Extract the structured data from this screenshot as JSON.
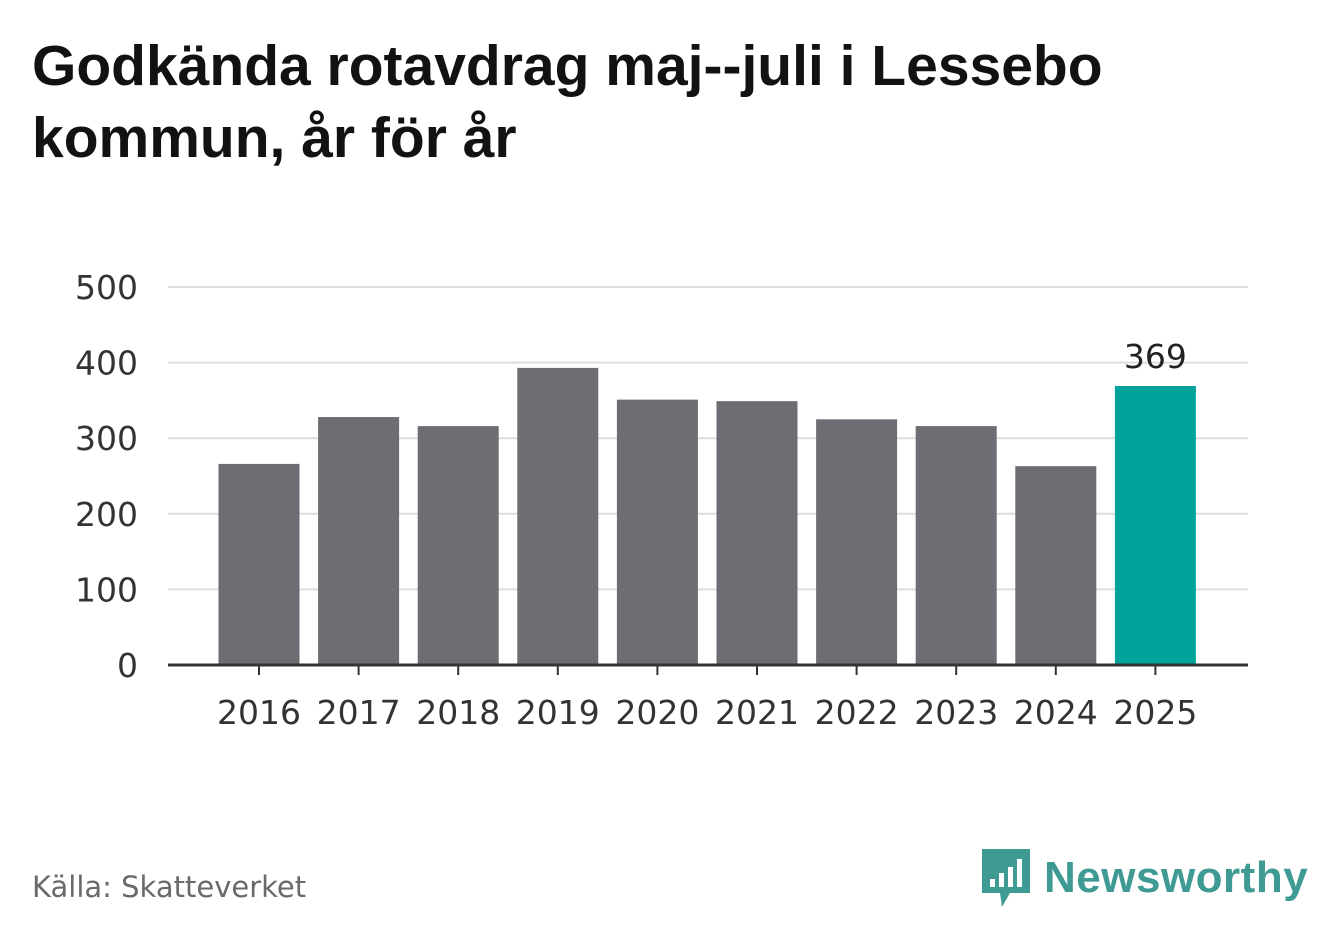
{
  "title": "Godkända rotavdrag maj--juli i Lessebo kommun, år för år",
  "source": "Källa: Skatteverket",
  "brand": {
    "name": "Newsworthy",
    "icon": "newsworthy-logo-icon",
    "color": "#3e9a93"
  },
  "colors": {
    "bar": "#6e6d73",
    "highlight": "#00a39a",
    "grid": "#dddddd",
    "axis": "#333333"
  },
  "chart_data": {
    "type": "bar",
    "categories": [
      "2016",
      "2017",
      "2018",
      "2019",
      "2020",
      "2021",
      "2022",
      "2023",
      "2024",
      "2025"
    ],
    "values": [
      266,
      328,
      316,
      393,
      351,
      349,
      325,
      316,
      263,
      369
    ],
    "highlight_index": 9,
    "data_labels": [
      {
        "index": 9,
        "text": "369"
      }
    ],
    "title": "Godkända rotavdrag maj--juli i Lessebo kommun, år för år",
    "xlabel": "",
    "ylabel": "",
    "ylim": [
      0,
      500
    ],
    "yticks": [
      0,
      100,
      200,
      300,
      400,
      500
    ],
    "grid": true,
    "legend": "none"
  }
}
